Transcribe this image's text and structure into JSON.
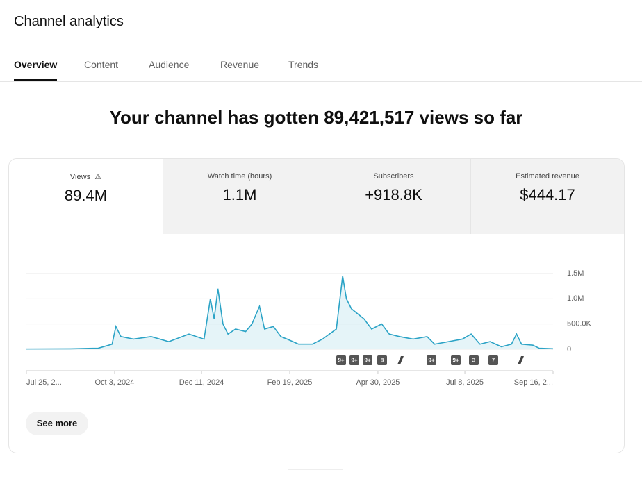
{
  "header": {
    "title": "Channel analytics"
  },
  "tabs": [
    "Overview",
    "Content",
    "Audience",
    "Revenue",
    "Trends"
  ],
  "headline": "Your channel has gotten 89,421,517 views so far",
  "metrics": [
    {
      "label": "Views",
      "value": "89.4M"
    },
    {
      "label": "Watch time (hours)",
      "value": "1.1M"
    },
    {
      "label": "Subscribers",
      "value": "+918.8K"
    },
    {
      "label": "Estimated revenue",
      "value": "$444.17"
    }
  ],
  "chart_data": {
    "type": "line",
    "x": [
      "2024-07-25",
      "2024-08-29",
      "2024-09-20",
      "2024-10-01",
      "2024-10-04",
      "2024-10-08",
      "2024-10-18",
      "2024-11-01",
      "2024-11-15",
      "2024-12-01",
      "2024-12-13",
      "2024-12-18",
      "2024-12-21",
      "2024-12-24",
      "2024-12-28",
      "2025-01-01",
      "2025-01-07",
      "2025-01-15",
      "2025-01-20",
      "2025-01-26",
      "2025-01-30",
      "2025-02-06",
      "2025-02-12",
      "2025-02-17",
      "2025-02-26",
      "2025-03-09",
      "2025-03-17",
      "2025-03-28",
      "2025-04-02",
      "2025-04-05",
      "2025-04-09",
      "2025-04-14",
      "2025-04-19",
      "2025-04-25",
      "2025-05-03",
      "2025-05-09",
      "2025-05-17",
      "2025-05-28",
      "2025-06-08",
      "2025-06-14",
      "2025-06-25",
      "2025-07-06",
      "2025-07-13",
      "2025-07-20",
      "2025-07-28",
      "2025-08-06",
      "2025-08-14",
      "2025-08-18",
      "2025-08-22",
      "2025-08-31",
      "2025-09-05",
      "2025-09-16"
    ],
    "series": [
      {
        "name": "Views",
        "color": "#2ba3c6",
        "values": [
          5000,
          8000,
          20000,
          100000,
          450000,
          250000,
          200000,
          250000,
          150000,
          300000,
          200000,
          1000000,
          600000,
          1200000,
          500000,
          300000,
          400000,
          350000,
          500000,
          850000,
          400000,
          450000,
          250000,
          200000,
          100000,
          100000,
          200000,
          400000,
          1450000,
          1000000,
          800000,
          700000,
          600000,
          400000,
          500000,
          300000,
          250000,
          200000,
          250000,
          100000,
          150000,
          200000,
          300000,
          100000,
          150000,
          50000,
          100000,
          300000,
          100000,
          80000,
          20000,
          10000
        ]
      }
    ],
    "xlim": [
      "2024-07-25",
      "2025-09-16"
    ],
    "xticks": [
      {
        "value": "2024-07-25",
        "label": "Jul 25, 2..."
      },
      {
        "value": "2024-10-03",
        "label": "Oct 3, 2024"
      },
      {
        "value": "2024-12-11",
        "label": "Dec 11, 2024"
      },
      {
        "value": "2025-02-19",
        "label": "Feb 19, 2025"
      },
      {
        "value": "2025-04-30",
        "label": "Apr 30, 2025"
      },
      {
        "value": "2025-07-08",
        "label": "Jul 8, 2025"
      },
      {
        "value": "2025-09-16",
        "label": "Sep 16, 2..."
      }
    ],
    "ylim": [
      0,
      1500000
    ],
    "yticks": [
      0,
      {
        "value": 500000,
        "label": "500.0K"
      },
      {
        "value": 1000000,
        "label": "1.0M"
      },
      {
        "value": 1500000,
        "label": "1.5M"
      }
    ],
    "grid": true,
    "markers": [
      "9+",
      "9+",
      "9+",
      "8",
      "9+",
      "9+",
      "3",
      "7"
    ]
  },
  "button": "See more"
}
